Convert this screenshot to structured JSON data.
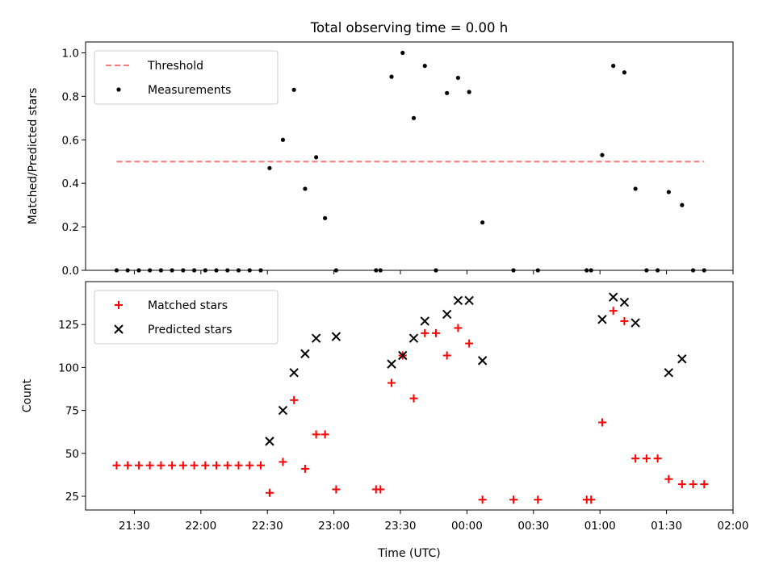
{
  "chart_data": {
    "title": "Total observing time = 0.00 h",
    "xlabel": "Time (UTC)",
    "x_unit": "UTC time (HH:MM), day 2 values shown as 24:xx",
    "x_ticks": [
      "21:30",
      "22:00",
      "22:30",
      "23:00",
      "23:30",
      "00:00",
      "00:30",
      "01:00",
      "01:30",
      "02:00"
    ],
    "xlim": [
      "21:08",
      "26:00"
    ],
    "panels": [
      {
        "type": "scatter",
        "ylabel": "Matched/Predicted stars",
        "ylim": [
          0,
          1.05
        ],
        "y_ticks": [
          "0.0",
          "0.2",
          "0.4",
          "0.6",
          "0.8",
          "1.0"
        ],
        "legend": {
          "placement": "top-left",
          "entries": [
            "Threshold",
            "Measurements"
          ]
        },
        "series": [
          {
            "name": "Threshold",
            "kind": "dashed-line",
            "color": "#ff7777",
            "x": [
              "21:22",
              "25:47"
            ],
            "y": [
              0.5,
              0.5
            ]
          },
          {
            "name": "Measurements",
            "kind": "dots",
            "color": "#000000",
            "x": [
              "21:22",
              "21:27",
              "21:32",
              "21:37",
              "21:42",
              "21:47",
              "21:52",
              "21:57",
              "22:02",
              "22:07",
              "22:12",
              "22:17",
              "22:22",
              "22:27",
              "22:31",
              "22:37",
              "22:42",
              "22:47",
              "22:52",
              "22:56",
              "23:01",
              "23:19",
              "23:21",
              "23:26",
              "23:31",
              "23:36",
              "23:41",
              "23:46",
              "23:51",
              "23:56",
              "24:01",
              "24:07",
              "24:21",
              "24:32",
              "24:54",
              "24:56",
              "25:01",
              "25:06",
              "25:11",
              "25:16",
              "25:21",
              "25:26",
              "25:31",
              "25:37",
              "25:42",
              "25:47"
            ],
            "y": [
              0,
              0,
              0,
              0,
              0,
              0,
              0,
              0,
              0,
              0,
              0,
              0,
              0,
              0,
              0.47,
              0.6,
              0.83,
              0.375,
              0.52,
              0.24,
              0,
              0,
              0,
              0.89,
              1.0,
              0.7,
              0.94,
              0,
              0.815,
              0.885,
              0.82,
              0.22,
              0,
              0,
              0,
              0,
              0.53,
              0.94,
              0.91,
              0.375,
              0,
              0,
              0.36,
              0.3,
              0,
              0
            ]
          }
        ]
      },
      {
        "type": "scatter",
        "ylabel": "Count",
        "ylim": [
          17,
          150
        ],
        "y_ticks": [
          "25",
          "50",
          "75",
          "100",
          "125"
        ],
        "legend": {
          "placement": "top-left",
          "entries": [
            "Matched stars",
            "Predicted stars"
          ]
        },
        "series": [
          {
            "name": "Matched stars",
            "marker": "plus",
            "color": "#ff0000",
            "x": [
              "21:22",
              "21:27",
              "21:32",
              "21:37",
              "21:42",
              "21:47",
              "21:52",
              "21:57",
              "22:02",
              "22:07",
              "22:12",
              "22:17",
              "22:22",
              "22:27",
              "22:31",
              "22:37",
              "22:42",
              "22:47",
              "22:52",
              "22:56",
              "23:01",
              "23:19",
              "23:21",
              "23:26",
              "23:31",
              "23:36",
              "23:41",
              "23:46",
              "23:51",
              "23:56",
              "24:01",
              "24:07",
              "24:21",
              "24:32",
              "24:54",
              "24:56",
              "25:01",
              "25:06",
              "25:11",
              "25:16",
              "25:21",
              "25:26",
              "25:31",
              "25:37",
              "25:42",
              "25:47"
            ],
            "y": [
              43,
              43,
              43,
              43,
              43,
              43,
              43,
              43,
              43,
              43,
              43,
              43,
              43,
              43,
              27,
              45,
              81,
              41,
              61,
              61,
              29,
              29,
              29,
              91,
              107,
              82,
              120,
              120,
              107,
              123,
              114,
              23,
              23,
              23,
              23,
              23,
              68,
              133,
              127,
              47,
              47,
              47,
              35,
              32,
              32,
              32
            ]
          },
          {
            "name": "Predicted stars",
            "marker": "x",
            "color": "#000000",
            "x": [
              "22:31",
              "22:37",
              "22:42",
              "22:47",
              "22:52",
              "23:01",
              "23:26",
              "23:31",
              "23:36",
              "23:41",
              "23:51",
              "23:56",
              "24:01",
              "24:07",
              "25:01",
              "25:06",
              "25:11",
              "25:16",
              "25:31",
              "25:37"
            ],
            "y": [
              57,
              75,
              97,
              108,
              117,
              118,
              102,
              107,
              117,
              127,
              131,
              139,
              139,
              104,
              128,
              141,
              138,
              126,
              97,
              105
            ]
          }
        ]
      }
    ]
  }
}
